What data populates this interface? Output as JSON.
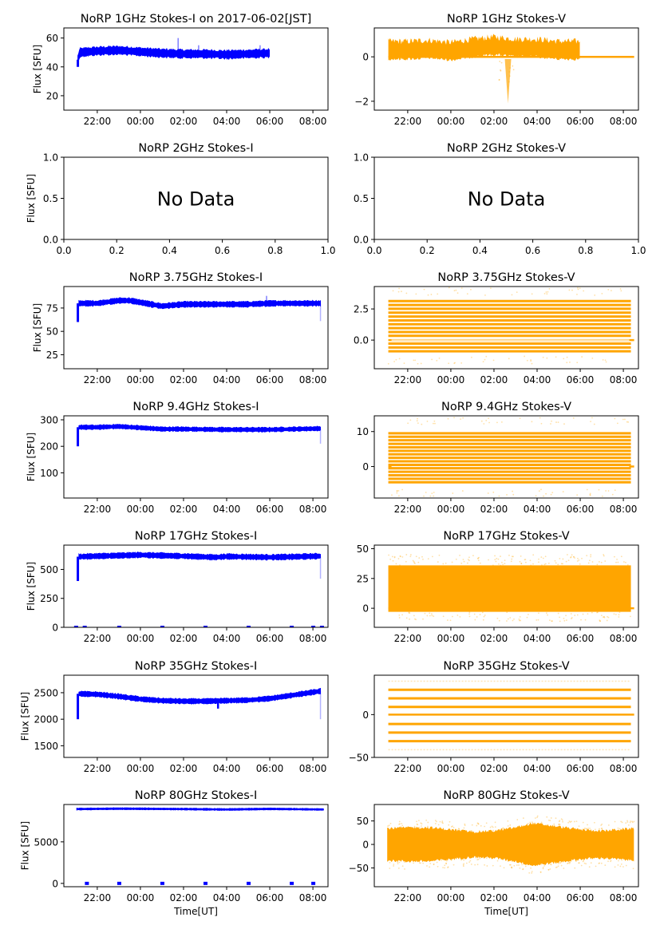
{
  "figure": {
    "x_label": "Time[UT]",
    "y_label": "Flux [SFU]",
    "colors": {
      "stokes_i": "#0000ff",
      "stokes_v": "#ffa500",
      "axes": "#000000"
    }
  },
  "chart_data": [
    {
      "type": "scatter",
      "id": "1ghz-i",
      "title": "NoRP 1GHz Stokes-I on 2017-06-02[JST]",
      "ylabel": "Flux [SFU]",
      "xlabel": "",
      "xlim": [
        -3.55,
        8.7
      ],
      "ylim": [
        10,
        67
      ],
      "xticks": [
        -2,
        0,
        2,
        4,
        6,
        8
      ],
      "xtick_labels": [
        "22:00",
        "00:00",
        "02:00",
        "04:00",
        "06:00",
        "08:00"
      ],
      "yticks": [
        20,
        40,
        60
      ],
      "ytick_labels": [
        "20",
        "40",
        "60"
      ],
      "color": "#0000ff",
      "series": {
        "start": -2.9,
        "end": 6.0,
        "initial": 40,
        "x": [
          -2.9,
          -2.8,
          -2.0,
          -1.0,
          0.0,
          1.0,
          2.0,
          3.0,
          4.0,
          5.0,
          6.0
        ],
        "y": [
          45,
          50,
          51,
          51.5,
          50.5,
          49.5,
          49,
          49,
          48.5,
          49,
          49.5
        ],
        "band": 2.5,
        "spikes": [
          {
            "x": 1.75,
            "y": 60
          },
          {
            "x": 2.7,
            "y": 55
          },
          {
            "x": 5.55,
            "y": 55
          }
        ]
      },
      "no_data": false
    },
    {
      "type": "scatter",
      "id": "1ghz-v",
      "title": "NoRP 1GHz Stokes-V",
      "ylabel": "",
      "xlabel": "",
      "xlim": [
        -3.55,
        8.7
      ],
      "ylim": [
        -2.4,
        1.3
      ],
      "xticks": [
        -2,
        0,
        2,
        4,
        6,
        8
      ],
      "xtick_labels": [
        "22:00",
        "00:00",
        "02:00",
        "04:00",
        "06:00",
        "08:00"
      ],
      "yticks": [
        -2,
        0
      ],
      "ytick_labels": [
        "−2",
        "0"
      ],
      "color": "#ffa500",
      "series": {
        "start": -2.9,
        "end": 6.0,
        "zero_line_end": 8.5,
        "x": [
          -2.9,
          -2.0,
          -1.0,
          0.0,
          1.0,
          2.0,
          3.0,
          4.0,
          5.0,
          6.0
        ],
        "y": [
          0.35,
          0.35,
          0.4,
          0.3,
          0.45,
          0.55,
          0.45,
          0.45,
          0.35,
          0.35
        ],
        "band": 0.35,
        "dip": {
          "x": 2.65,
          "y": -2.1
        }
      },
      "no_data": false
    },
    {
      "type": "scatter",
      "id": "2ghz-i",
      "title": "NoRP 2GHz Stokes-I",
      "ylabel": "Flux [SFU]",
      "xlabel": "",
      "xlim": [
        0,
        1
      ],
      "ylim": [
        0,
        1
      ],
      "xticks": [
        0,
        0.2,
        0.4,
        0.6,
        0.8,
        1.0
      ],
      "xtick_labels": [
        "0.0",
        "0.2",
        "0.4",
        "0.6",
        "0.8",
        "1.0"
      ],
      "yticks": [
        0,
        0.5,
        1.0
      ],
      "ytick_labels": [
        "0.0",
        "0.5",
        "1.0"
      ],
      "no_data": true,
      "no_data_text": "No Data"
    },
    {
      "type": "scatter",
      "id": "2ghz-v",
      "title": "NoRP 2GHz Stokes-V",
      "ylabel": "",
      "xlabel": "",
      "xlim": [
        0,
        1
      ],
      "ylim": [
        0,
        1
      ],
      "xticks": [
        0,
        0.2,
        0.4,
        0.6,
        0.8,
        1.0
      ],
      "xtick_labels": [
        "0.0",
        "0.2",
        "0.4",
        "0.6",
        "0.8",
        "1.0"
      ],
      "yticks": [
        0,
        0.5,
        1.0
      ],
      "ytick_labels": [
        "0.0",
        "0.5",
        "1.0"
      ],
      "no_data": true,
      "no_data_text": "No Data"
    },
    {
      "type": "scatter",
      "id": "3.75ghz-i",
      "title": "NoRP 3.75GHz Stokes-I",
      "ylabel": "Flux [SFU]",
      "xlabel": "",
      "xlim": [
        -3.55,
        8.7
      ],
      "ylim": [
        10,
        98
      ],
      "xticks": [
        -2,
        0,
        2,
        4,
        6,
        8
      ],
      "xtick_labels": [
        "22:00",
        "00:00",
        "02:00",
        "04:00",
        "06:00",
        "08:00"
      ],
      "yticks": [
        25,
        50,
        75
      ],
      "ytick_labels": [
        "25",
        "50",
        "75"
      ],
      "color": "#0000ff",
      "series": {
        "start": -2.9,
        "end": 8.35,
        "initial": 60,
        "x": [
          -2.85,
          -2.0,
          -1.0,
          -0.5,
          0.0,
          1.0,
          2.0,
          3.0,
          4.0,
          5.0,
          6.0,
          7.0,
          8.35
        ],
        "y": [
          80,
          80,
          83,
          83,
          81,
          77,
          79,
          79,
          79,
          79,
          80,
          80,
          80
        ],
        "band": 2.5,
        "spikes": [
          {
            "x": 5.85,
            "y": 88
          }
        ],
        "tail": {
          "x": 8.35,
          "y": 61
        }
      },
      "no_data": false
    },
    {
      "type": "scatter",
      "id": "3.75ghz-v",
      "title": "NoRP 3.75GHz Stokes-V",
      "ylabel": "",
      "xlabel": "",
      "xlim": [
        -3.55,
        8.7
      ],
      "ylim": [
        -2.3,
        4.3
      ],
      "xticks": [
        -2,
        0,
        2,
        4,
        6,
        8
      ],
      "xtick_labels": [
        "22:00",
        "00:00",
        "02:00",
        "04:00",
        "06:00",
        "08:00"
      ],
      "yticks": [
        0,
        2.5
      ],
      "ytick_labels": [
        "0.0",
        "2.5"
      ],
      "color": "#ffa500",
      "series": {
        "start": -2.9,
        "end": 8.35,
        "zero_line_end": 8.5,
        "level_min": -0.9,
        "level_max": 3.2,
        "level_step": 0.31,
        "sparse_min": -1.6,
        "sparse_max": 3.9
      },
      "no_data": false
    },
    {
      "type": "scatter",
      "id": "9.4ghz-i",
      "title": "NoRP 9.4GHz Stokes-I",
      "ylabel": "Flux [SFU]",
      "xlabel": "",
      "xlim": [
        -3.55,
        8.7
      ],
      "ylim": [
        5,
        315
      ],
      "xticks": [
        -2,
        0,
        2,
        4,
        6,
        8
      ],
      "xtick_labels": [
        "22:00",
        "00:00",
        "02:00",
        "04:00",
        "06:00",
        "08:00"
      ],
      "yticks": [
        100,
        200,
        300
      ],
      "ytick_labels": [
        "100",
        "200",
        "300"
      ],
      "color": "#0000ff",
      "series": {
        "start": -2.9,
        "end": 8.35,
        "initial": 200,
        "x": [
          -2.85,
          -2.0,
          -1.0,
          0.0,
          1.0,
          2.0,
          4.0,
          6.0,
          8.35
        ],
        "y": [
          272,
          272,
          275,
          270,
          265,
          265,
          263,
          263,
          267
        ],
        "band": 7,
        "tail": {
          "x": 8.35,
          "y": 210
        }
      },
      "no_data": false
    },
    {
      "type": "scatter",
      "id": "9.4ghz-v",
      "title": "NoRP 9.4GHz Stokes-V",
      "ylabel": "",
      "xlabel": "",
      "xlim": [
        -3.55,
        8.7
      ],
      "ylim": [
        -9,
        14.5
      ],
      "xticks": [
        -2,
        0,
        2,
        4,
        6,
        8
      ],
      "xtick_labels": [
        "22:00",
        "00:00",
        "02:00",
        "04:00",
        "06:00",
        "08:00"
      ],
      "yticks": [
        0,
        10
      ],
      "ytick_labels": [
        "0",
        "10"
      ],
      "color": "#ffa500",
      "series": {
        "start": -2.9,
        "end": 8.35,
        "zero_line_end": 8.5,
        "level_min": -4.5,
        "level_max": 10,
        "level_step": 1.0,
        "sparse_min": -7.5,
        "sparse_max": 13
      },
      "no_data": false
    },
    {
      "type": "scatter",
      "id": "17ghz-i",
      "title": "NoRP 17GHz Stokes-I",
      "ylabel": "Flux [SFU]",
      "xlabel": "",
      "xlim": [
        -3.55,
        8.7
      ],
      "ylim": [
        0,
        710
      ],
      "xticks": [
        -2,
        0,
        2,
        4,
        6,
        8
      ],
      "xtick_labels": [
        "22:00",
        "00:00",
        "02:00",
        "04:00",
        "06:00",
        "08:00"
      ],
      "yticks": [
        0,
        250,
        500
      ],
      "ytick_labels": [
        "0",
        "250",
        "500"
      ],
      "color": "#0000ff",
      "series": {
        "start": -2.9,
        "end": 8.35,
        "initial": 400,
        "x": [
          -2.85,
          -2.0,
          0.0,
          2.0,
          3.5,
          4.0,
          6.0,
          8.35
        ],
        "y": [
          610,
          615,
          625,
          615,
          605,
          612,
          605,
          615
        ],
        "band": 20,
        "tail": {
          "x": 8.35,
          "y": 420
        },
        "zero_marks": [
          -3.0,
          -2.6,
          -1.0,
          1.0,
          3.0,
          5.0,
          7.0,
          8.0,
          8.4
        ]
      },
      "no_data": false
    },
    {
      "type": "scatter",
      "id": "17ghz-v",
      "title": "NoRP 17GHz Stokes-V",
      "ylabel": "",
      "xlabel": "",
      "xlim": [
        -3.55,
        8.7
      ],
      "ylim": [
        -16,
        53
      ],
      "xticks": [
        -2,
        0,
        2,
        4,
        6,
        8
      ],
      "xtick_labels": [
        "22:00",
        "00:00",
        "02:00",
        "04:00",
        "06:00",
        "08:00"
      ],
      "yticks": [
        0,
        25,
        50
      ],
      "ytick_labels": [
        "0",
        "25",
        "50"
      ],
      "color": "#ffa500",
      "series": {
        "start": -2.9,
        "end": 8.35,
        "zero_line_end": 8.5,
        "band_low": -3,
        "band_high": 36,
        "sparse_min": -11,
        "sparse_max": 45
      },
      "no_data": false
    },
    {
      "type": "scatter",
      "id": "35ghz-i",
      "title": "NoRP 35GHz Stokes-I",
      "ylabel": "Flux [SFU]",
      "xlabel": "",
      "xlim": [
        -3.55,
        8.7
      ],
      "ylim": [
        1280,
        2830
      ],
      "xticks": [
        -2,
        0,
        2,
        4,
        6,
        8
      ],
      "xtick_labels": [
        "22:00",
        "00:00",
        "02:00",
        "04:00",
        "06:00",
        "08:00"
      ],
      "yticks": [
        1500,
        2000,
        2500
      ],
      "ytick_labels": [
        "1500",
        "2000",
        "2500"
      ],
      "color": "#0000ff",
      "series": {
        "start": -2.9,
        "end": 8.35,
        "initial": 2000,
        "x": [
          -2.85,
          -2.0,
          -1.0,
          0.0,
          1.0,
          2.0,
          3.0,
          4.0,
          5.0,
          6.0,
          7.0,
          8.35
        ],
        "y": [
          2480,
          2470,
          2430,
          2380,
          2350,
          2340,
          2340,
          2350,
          2360,
          2390,
          2450,
          2530
        ],
        "band": 40,
        "dip": {
          "x": 3.6,
          "y": 2200
        },
        "tail": {
          "x": 8.35,
          "y": 2000
        }
      },
      "no_data": false
    },
    {
      "type": "scatter",
      "id": "35ghz-v",
      "title": "NoRP 35GHz Stokes-V",
      "ylabel": "",
      "xlabel": "",
      "xlim": [
        -3.55,
        8.7
      ],
      "ylim": [
        -50,
        46
      ],
      "xticks": [
        -2,
        0,
        2,
        4,
        6,
        8
      ],
      "xtick_labels": [
        "22:00",
        "00:00",
        "02:00",
        "04:00",
        "06:00",
        "08:00"
      ],
      "yticks": [
        -50,
        0
      ],
      "ytick_labels": [
        "−50",
        "0"
      ],
      "color": "#ffa500",
      "series": {
        "start": -2.9,
        "end": 8.35,
        "zero_line_end": 8.5,
        "levels": [
          -31,
          -21,
          -11,
          9,
          19,
          29
        ],
        "sparse_levels": [
          -41,
          39
        ]
      },
      "no_data": false
    },
    {
      "type": "scatter",
      "id": "80ghz-i",
      "title": "NoRP 80GHz Stokes-I",
      "ylabel": "Flux [SFU]",
      "xlabel": "Time[UT]",
      "xlim": [
        -3.55,
        8.7
      ],
      "ylim": [
        -400,
        9500
      ],
      "xticks": [
        -2,
        0,
        2,
        4,
        6,
        8
      ],
      "xtick_labels": [
        "22:00",
        "00:00",
        "02:00",
        "04:00",
        "06:00",
        "08:00"
      ],
      "yticks": [
        0,
        5000
      ],
      "ytick_labels": [
        "0",
        "5000"
      ],
      "color": "#0000ff",
      "series": {
        "start": -2.95,
        "end": 8.5,
        "x": [
          -2.95,
          -1.0,
          2.0,
          4.0,
          6.0,
          8.5
        ],
        "y": [
          8950,
          9000,
          8950,
          8900,
          8970,
          8900
        ],
        "band": 90,
        "zero_marks": [
          -2.5,
          -1.0,
          1.0,
          3.0,
          5.0,
          7.0,
          8.0
        ]
      },
      "no_data": false
    },
    {
      "type": "scatter",
      "id": "80ghz-v",
      "title": "NoRP 80GHz Stokes-V",
      "ylabel": "",
      "xlabel": "Time[UT]",
      "xlim": [
        -3.55,
        8.7
      ],
      "ylim": [
        -90,
        85
      ],
      "xticks": [
        -2,
        0,
        2,
        4,
        6,
        8
      ],
      "xtick_labels": [
        "22:00",
        "00:00",
        "02:00",
        "04:00",
        "06:00",
        "08:00"
      ],
      "yticks": [
        -50,
        0,
        50
      ],
      "ytick_labels": [
        "−50",
        "0",
        "50"
      ],
      "color": "#ffa500",
      "series": {
        "start": -2.95,
        "end": 8.5,
        "x": [
          -2.95,
          -2.0,
          -1.0,
          0.0,
          1.0,
          2.0,
          3.0,
          3.8,
          5.0,
          6.0,
          7.0,
          8.5
        ],
        "half_width": [
          38,
          40,
          40,
          35,
          30,
          32,
          40,
          50,
          42,
          35,
          32,
          38
        ]
      },
      "no_data": false
    }
  ]
}
